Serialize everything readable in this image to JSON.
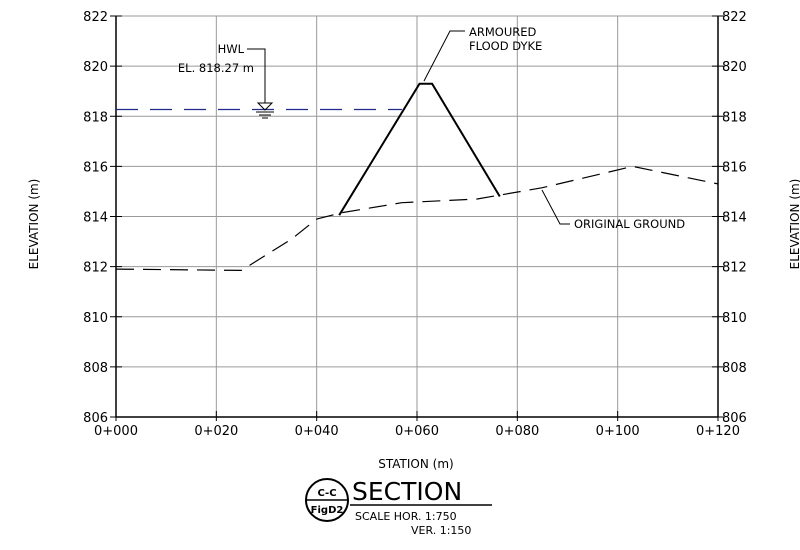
{
  "chart_data": {
    "type": "line",
    "xlabel": "STATION (m)",
    "ylabel": "ELEVATION (m)",
    "xlim": [
      0,
      120
    ],
    "ylim": [
      806,
      822
    ],
    "x_ticks": [
      "0+000",
      "0+020",
      "0+040",
      "0+060",
      "0+080",
      "0+100",
      "0+120"
    ],
    "x_tick_values": [
      0,
      20,
      40,
      60,
      80,
      100,
      120
    ],
    "y_ticks": [
      "806",
      "808",
      "810",
      "812",
      "814",
      "816",
      "818",
      "820",
      "822"
    ],
    "y_tick_values": [
      806,
      808,
      810,
      812,
      814,
      816,
      818,
      820,
      822
    ],
    "grid": true,
    "series": [
      {
        "name": "ORIGINAL GROUND",
        "style": "dashed",
        "color": "#000000",
        "x": [
          0,
          25,
          35,
          40,
          45,
          57,
          72,
          85,
          103,
          120
        ],
        "y": [
          811.9,
          811.85,
          813.1,
          813.9,
          814.15,
          814.55,
          814.7,
          815.15,
          816.0,
          815.3
        ]
      },
      {
        "name": "ARMOURED FLOOD DYKE",
        "style": "solid",
        "color": "#000000",
        "x": [
          44.5,
          60.5,
          63,
          76.5
        ],
        "y": [
          814.05,
          819.3,
          819.3,
          814.8
        ]
      },
      {
        "name": "HWL",
        "style": "dashed",
        "color": "#1f2a8c",
        "x": [
          0,
          57
        ],
        "y": [
          818.27,
          818.27
        ]
      }
    ],
    "annotations": {
      "hwl_label": "HWL",
      "hwl_elevation": "EL. 818.27 m",
      "dyke_line1": "ARMOURED",
      "dyke_line2": "FLOOD DYKE",
      "ground_label": "ORIGINAL GROUND"
    }
  },
  "title_block": {
    "section_code": "C-C",
    "figure_ref": "FigD2",
    "title": "SECTION",
    "scale_hor": "SCALE HOR. 1:750",
    "scale_ver": "VER. 1:150"
  },
  "colors": {
    "grid": "#9a9a9a",
    "line": "#000000",
    "water": "#1f2a8c"
  }
}
